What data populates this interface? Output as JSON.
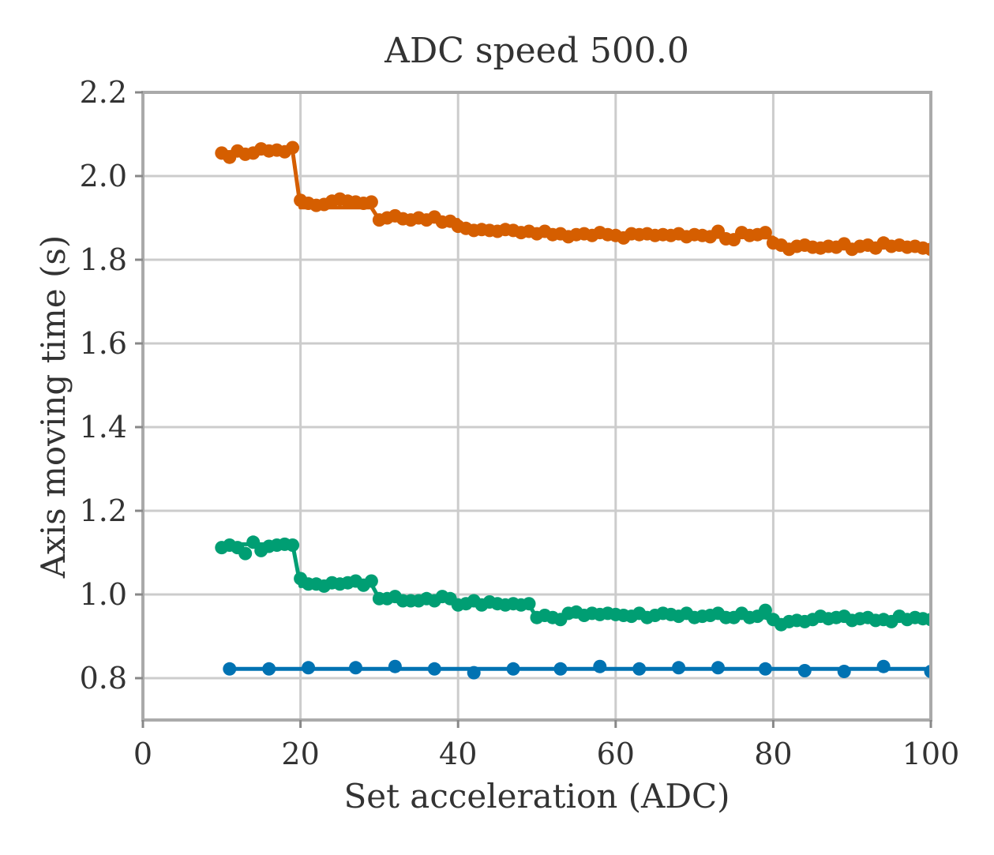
{
  "chart_data": {
    "type": "line",
    "title": "ADC speed 500.0",
    "xlabel": "Set acceleration (ADC)",
    "ylabel": "Axis moving time (s)",
    "xlim": [
      0,
      100
    ],
    "ylim": [
      0.7,
      2.2
    ],
    "xticks": [
      0,
      20,
      40,
      60,
      80,
      100
    ],
    "xtick_labels": [
      "0",
      "20",
      "40",
      "60",
      "80",
      "100"
    ],
    "yticks": [
      0.8,
      1.0,
      1.2,
      1.4,
      1.6,
      1.8,
      2.0,
      2.2
    ],
    "ytick_labels": [
      "0.8",
      "1.0",
      "1.2",
      "1.4",
      "1.6",
      "1.8",
      "2.0",
      "2.2"
    ],
    "grid": true,
    "legend": "none",
    "series": [
      {
        "color": "#0072b2",
        "step_line": {
          "x": [
            11,
            100
          ],
          "y": [
            0.822,
            0.822
          ]
        },
        "points": {
          "x": [
            11,
            16,
            21,
            27,
            32,
            37,
            42,
            47,
            53,
            58,
            63,
            68,
            73,
            79,
            84,
            89,
            94,
            100
          ],
          "y": [
            0.822,
            0.822,
            0.825,
            0.825,
            0.828,
            0.822,
            0.813,
            0.822,
            0.822,
            0.828,
            0.822,
            0.825,
            0.825,
            0.822,
            0.818,
            0.816,
            0.828,
            0.816
          ]
        }
      },
      {
        "color": "#d55e00",
        "step_line": {
          "x": [
            10,
            19,
            20,
            29,
            30,
            40,
            41,
            50,
            51,
            60,
            61,
            70,
            71,
            80,
            81,
            90,
            91,
            100
          ],
          "y": [
            2.057,
            2.06,
            1.925,
            1.925,
            1.895,
            1.895,
            1.87,
            1.868,
            1.862,
            1.86,
            1.86,
            1.858,
            1.855,
            1.853,
            1.833,
            1.83,
            1.83,
            1.83
          ]
        },
        "points": {
          "x": [
            10,
            11,
            12,
            13,
            14,
            15,
            16,
            17,
            18,
            19,
            20,
            21,
            22,
            23,
            24,
            25,
            26,
            27,
            28,
            29,
            30,
            31,
            32,
            33,
            34,
            35,
            36,
            37,
            38,
            39,
            40,
            41,
            42,
            43,
            44,
            45,
            46,
            47,
            48,
            49,
            50,
            51,
            52,
            53,
            54,
            55,
            56,
            57,
            58,
            59,
            60,
            61,
            62,
            63,
            64,
            65,
            66,
            67,
            68,
            69,
            70,
            71,
            72,
            73,
            74,
            75,
            76,
            77,
            78,
            79,
            80,
            81,
            82,
            83,
            84,
            85,
            86,
            87,
            88,
            89,
            90,
            91,
            92,
            93,
            94,
            95,
            96,
            97,
            98,
            99,
            100
          ],
          "y": [
            2.055,
            2.045,
            2.06,
            2.052,
            2.055,
            2.065,
            2.06,
            2.062,
            2.058,
            2.068,
            1.942,
            1.935,
            1.93,
            1.932,
            1.94,
            1.945,
            1.94,
            1.938,
            1.935,
            1.938,
            1.895,
            1.9,
            1.905,
            1.898,
            1.895,
            1.9,
            1.895,
            1.902,
            1.89,
            1.892,
            1.88,
            1.875,
            1.87,
            1.872,
            1.87,
            1.868,
            1.872,
            1.87,
            1.865,
            1.868,
            1.862,
            1.868,
            1.86,
            1.862,
            1.855,
            1.86,
            1.862,
            1.858,
            1.865,
            1.86,
            1.858,
            1.852,
            1.862,
            1.86,
            1.862,
            1.858,
            1.86,
            1.858,
            1.862,
            1.855,
            1.86,
            1.858,
            1.855,
            1.868,
            1.85,
            1.848,
            1.865,
            1.858,
            1.86,
            1.865,
            1.84,
            1.835,
            1.825,
            1.832,
            1.835,
            1.83,
            1.828,
            1.832,
            1.83,
            1.838,
            1.825,
            1.832,
            1.835,
            1.828,
            1.84,
            1.832,
            1.835,
            1.83,
            1.832,
            1.828,
            1.825
          ]
        }
      },
      {
        "color": "#009e73",
        "step_line": {
          "x": [
            10,
            19,
            20,
            29,
            30,
            39,
            40,
            49,
            50,
            59,
            60,
            69,
            70,
            79,
            80,
            89,
            90,
            100
          ],
          "y": [
            1.12,
            1.12,
            1.02,
            1.025,
            0.99,
            0.985,
            0.975,
            0.975,
            0.945,
            0.95,
            0.95,
            0.952,
            0.95,
            0.945,
            0.935,
            0.94,
            0.94,
            0.94
          ]
        },
        "points": {
          "x": [
            10,
            11,
            12,
            13,
            14,
            15,
            16,
            17,
            18,
            19,
            20,
            21,
            22,
            23,
            24,
            25,
            26,
            27,
            28,
            29,
            30,
            31,
            32,
            33,
            34,
            35,
            36,
            37,
            38,
            39,
            40,
            41,
            42,
            43,
            44,
            45,
            46,
            47,
            48,
            49,
            50,
            51,
            52,
            53,
            54,
            55,
            56,
            57,
            58,
            59,
            60,
            61,
            62,
            63,
            64,
            65,
            66,
            67,
            68,
            69,
            70,
            71,
            72,
            73,
            74,
            75,
            76,
            77,
            78,
            79,
            80,
            81,
            82,
            83,
            84,
            85,
            86,
            87,
            88,
            89,
            90,
            91,
            92,
            93,
            94,
            95,
            96,
            97,
            98,
            99,
            100
          ],
          "y": [
            1.112,
            1.118,
            1.112,
            1.098,
            1.125,
            1.105,
            1.115,
            1.118,
            1.12,
            1.118,
            1.038,
            1.025,
            1.025,
            1.02,
            1.028,
            1.025,
            1.028,
            1.032,
            1.022,
            1.032,
            0.99,
            0.99,
            0.995,
            0.985,
            0.985,
            0.985,
            0.99,
            0.985,
            0.995,
            0.99,
            0.975,
            0.978,
            0.985,
            0.975,
            0.982,
            0.978,
            0.975,
            0.978,
            0.975,
            0.978,
            0.945,
            0.95,
            0.945,
            0.94,
            0.955,
            0.958,
            0.95,
            0.955,
            0.952,
            0.955,
            0.952,
            0.95,
            0.948,
            0.955,
            0.945,
            0.95,
            0.955,
            0.952,
            0.948,
            0.955,
            0.945,
            0.948,
            0.95,
            0.955,
            0.945,
            0.945,
            0.955,
            0.945,
            0.948,
            0.962,
            0.94,
            0.928,
            0.935,
            0.938,
            0.935,
            0.94,
            0.948,
            0.942,
            0.945,
            0.948,
            0.938,
            0.942,
            0.945,
            0.938,
            0.94,
            0.935,
            0.948,
            0.94,
            0.945,
            0.942,
            0.94
          ]
        }
      }
    ]
  }
}
